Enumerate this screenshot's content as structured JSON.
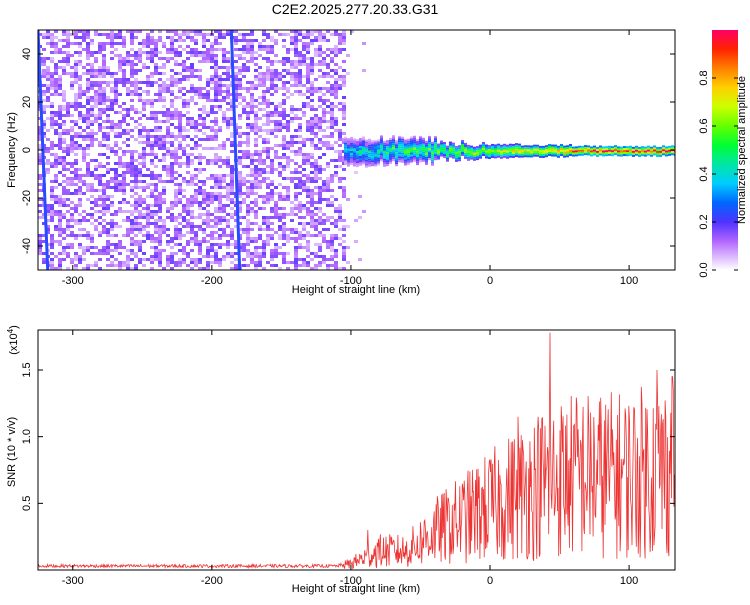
{
  "chart_data": [
    {
      "type": "heatmap",
      "title": "C2E2.2025.277.20.33.G31",
      "xlabel": "Height of straight line (km)",
      "ylabel": "Frequency (Hz)",
      "xlim": [
        -325,
        133
      ],
      "ylim": [
        -50,
        50
      ],
      "xticks": [
        -300,
        -200,
        -100,
        0,
        100
      ],
      "yticks": [
        -40,
        -20,
        0,
        20,
        40
      ],
      "colorbar": {
        "label": "Normalized spectral amplitude",
        "range": [
          0,
          1
        ],
        "ticks": [
          "0.0",
          "0.2",
          "0.4",
          "0.6",
          "0.8"
        ]
      },
      "signal": {
        "noise_region_x": [
          -325,
          -105
        ],
        "tracking_start_x": -105,
        "center_frequency_hz": 0,
        "streaks": [
          {
            "x_top": -186,
            "x_bottom": -180
          },
          {
            "x_top": -325,
            "x_bottom": -318
          }
        ]
      }
    },
    {
      "type": "line",
      "xlabel": "Height of straight line (km)",
      "ylabel": "SNR (10 * v/v)",
      "y_multiplier": "(x10",
      "y_multiplier_exp": "4",
      "y_multiplier_close": ")",
      "xlim": [
        -325,
        133
      ],
      "ylim": [
        0,
        1.8
      ],
      "xticks": [
        -300,
        -200,
        -100,
        0,
        100
      ],
      "yticks": [
        "0.5",
        "1.0",
        "1.5"
      ],
      "series": [
        {
          "name": "SNR",
          "color": "#ee3333",
          "profile": [
            [
              -325,
              0.03
            ],
            [
              -200,
              0.03
            ],
            [
              -110,
              0.03
            ],
            [
              -100,
              0.05
            ],
            [
              -80,
              0.15
            ],
            [
              -60,
              0.15
            ],
            [
              -40,
              0.3
            ],
            [
              -20,
              0.4
            ],
            [
              0,
              0.5
            ],
            [
              20,
              0.6
            ],
            [
              40,
              0.7
            ],
            [
              60,
              0.75
            ],
            [
              80,
              0.75
            ],
            [
              100,
              0.75
            ],
            [
              120,
              0.8
            ],
            [
              133,
              0.8
            ]
          ],
          "peaks": [
            [
              -88,
              0.3
            ],
            [
              20,
              1.15
            ],
            [
              43,
              1.78
            ],
            [
              120,
              1.5
            ],
            [
              131,
              1.45
            ]
          ]
        }
      ]
    }
  ],
  "colors": {
    "noise": "#7a22e8",
    "trace_red": "#ee3333",
    "frame": "#000000"
  }
}
